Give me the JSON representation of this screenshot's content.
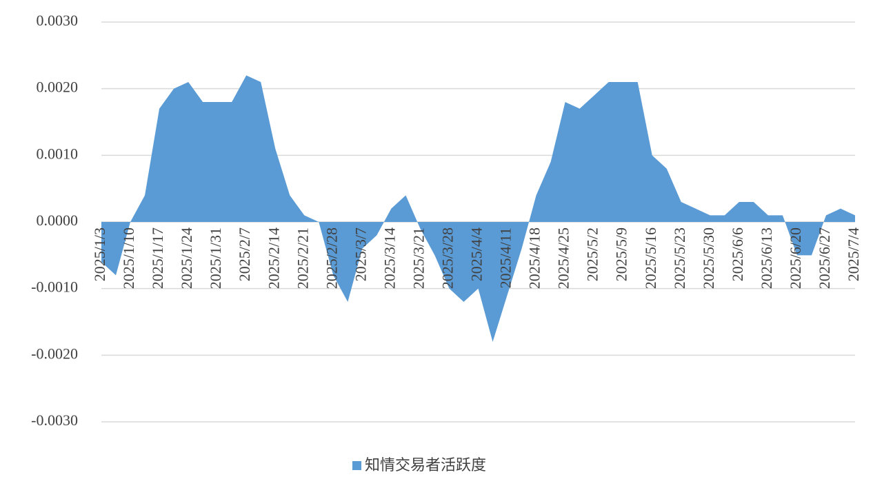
{
  "chart_data": {
    "type": "area",
    "categories": [
      "2025/1/3",
      null,
      "2025/1/10",
      null,
      "2025/1/17",
      null,
      "2025/1/24",
      null,
      "2025/1/31",
      null,
      "2025/2/7",
      null,
      "2025/2/14",
      null,
      "2025/2/21",
      null,
      "2025/2/28",
      null,
      "2025/3/7",
      null,
      "2025/3/14",
      null,
      "2025/3/21",
      null,
      "2025/3/28",
      null,
      "2025/4/4",
      null,
      "2025/4/11",
      null,
      "2025/4/18",
      null,
      "2025/4/25",
      null,
      "2025/5/2",
      null,
      "2025/5/9",
      null,
      "2025/5/16",
      null,
      "2025/5/23",
      null,
      "2025/5/30",
      null,
      "2025/6/6",
      null,
      "2025/6/13",
      null,
      "2025/6/20",
      null,
      "2025/6/27",
      null,
      "2025/7/4"
    ],
    "series": [
      {
        "name": "知情交易者活跃度",
        "color": "#5b9bd5",
        "values": [
          -0.0006,
          -0.0008,
          0.0,
          0.0004,
          0.0017,
          0.002,
          0.0021,
          0.0018,
          0.0018,
          0.0018,
          0.0022,
          0.0021,
          0.0011,
          0.0004,
          0.0001,
          0.0,
          -0.0008,
          -0.0012,
          -0.0004,
          -0.0002,
          0.0002,
          0.0004,
          -0.0001,
          -0.0005,
          -0.001,
          -0.0012,
          -0.001,
          -0.0018,
          -0.0011,
          -0.0004,
          0.0004,
          0.0009,
          0.0018,
          0.0017,
          0.0019,
          0.0021,
          0.0021,
          0.0021,
          0.001,
          0.0008,
          0.0003,
          0.0002,
          0.0001,
          0.0001,
          0.0003,
          0.0003,
          0.0001,
          0.0001,
          -0.0005,
          -0.0005,
          0.0001,
          0.0002,
          0.0001
        ]
      }
    ],
    "ylim": [
      -0.003,
      0.003
    ],
    "yticks": [
      {
        "value": -0.003,
        "label": "-0.0030"
      },
      {
        "value": -0.002,
        "label": "-0.0020"
      },
      {
        "value": -0.001,
        "label": "-0.0010"
      },
      {
        "value": 0,
        "label": "0.0000"
      },
      {
        "value": 0.001,
        "label": "0.0010"
      },
      {
        "value": 0.002,
        "label": "0.0020"
      },
      {
        "value": 0.003,
        "label": "0.0030"
      }
    ],
    "grid": true,
    "legend": "bottom"
  }
}
